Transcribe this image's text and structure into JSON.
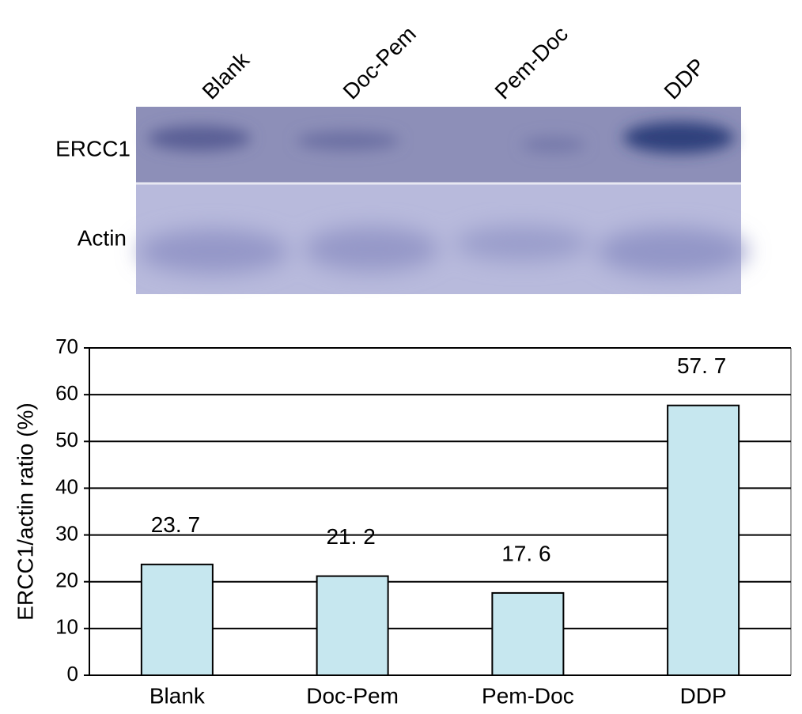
{
  "blot": {
    "lanes": [
      "Blank",
      "Doc-Pem",
      "Pem-Doc",
      "DDP"
    ],
    "rows": [
      "ERCC1",
      "Actin"
    ]
  },
  "chart_data": {
    "type": "bar",
    "y_label": "ERCC1/actin ratio (%)",
    "categories": [
      "Blank",
      "Doc-Pem",
      "Pem-Doc",
      "DDP"
    ],
    "values": [
      23.7,
      21.2,
      17.6,
      57.7
    ],
    "value_labels": [
      "23. 7",
      "21. 2",
      "17. 6",
      "57. 7"
    ],
    "color": "#c6e7ef",
    "ylim": [
      0,
      70
    ],
    "yticks": [
      0,
      10,
      20,
      30,
      40,
      50,
      60,
      70
    ],
    "grid": true
  }
}
